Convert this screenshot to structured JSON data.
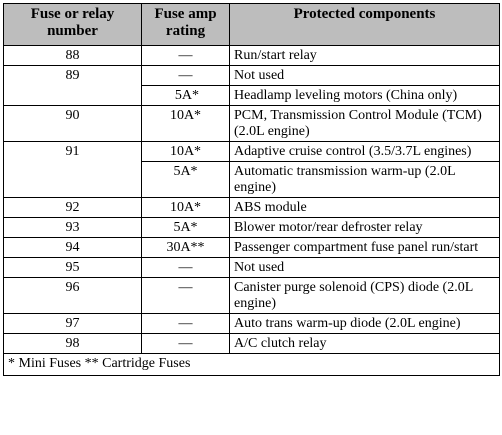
{
  "headers": {
    "fuse": "Fuse or relay number",
    "amp": "Fuse amp rating",
    "components": "Protected components"
  },
  "rows": [
    {
      "number": "88",
      "amp": "—",
      "component": "Run/start relay"
    },
    {
      "number": "89",
      "amp": "—",
      "component": "Not used"
    },
    {
      "number": "",
      "amp": "5A*",
      "component": "Headlamp leveling motors (China only)"
    },
    {
      "number": "90",
      "amp": "10A*",
      "component": "PCM, Transmission Control Module (TCM) (2.0L engine)"
    },
    {
      "number": "91",
      "amp": "10A*",
      "component": "Adaptive cruise control (3.5/3.7L engines)"
    },
    {
      "number": "",
      "amp": "5A*",
      "component": "Automatic transmission warm-up (2.0L engine)"
    },
    {
      "number": "92",
      "amp": "10A*",
      "component": "ABS module"
    },
    {
      "number": "93",
      "amp": "5A*",
      "component": "Blower motor/rear defroster relay"
    },
    {
      "number": "94",
      "amp": "30A**",
      "component": "Passenger compartment fuse panel run/start"
    },
    {
      "number": "95",
      "amp": "—",
      "component": "Not used"
    },
    {
      "number": "96",
      "amp": "—",
      "component": "Canister purge solenoid (CPS) diode (2.0L engine)"
    },
    {
      "number": "97",
      "amp": "—",
      "component": "Auto trans warm-up diode (2.0L engine)"
    },
    {
      "number": "98",
      "amp": "—",
      "component": "A/C clutch relay"
    }
  ],
  "footnote": "* Mini Fuses ** Cartridge Fuses"
}
